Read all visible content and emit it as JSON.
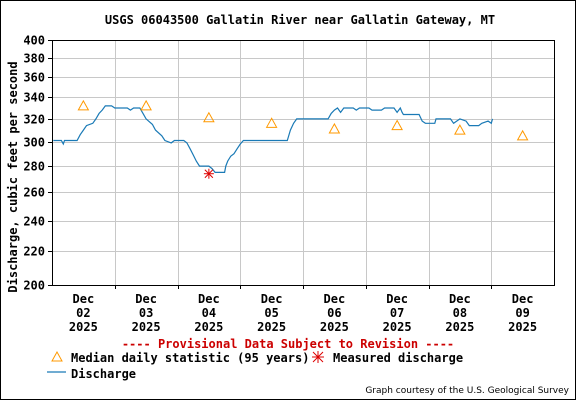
{
  "chart_data": {
    "type": "line",
    "title": "USGS 06043500 Gallatin River near Gallatin Gateway, MT",
    "ylabel": "Discharge, cubic feet per second",
    "ylim": [
      200,
      400
    ],
    "y_scale": "log",
    "y_ticks": [
      200,
      220,
      240,
      260,
      280,
      300,
      320,
      340,
      360,
      380,
      400
    ],
    "x_ticks": [
      {
        "label": [
          "Dec",
          "02",
          "2025"
        ],
        "day": 2
      },
      {
        "label": [
          "Dec",
          "03",
          "2025"
        ],
        "day": 3
      },
      {
        "label": [
          "Dec",
          "04",
          "2025"
        ],
        "day": 4
      },
      {
        "label": [
          "Dec",
          "05",
          "2025"
        ],
        "day": 5
      },
      {
        "label": [
          "Dec",
          "06",
          "2025"
        ],
        "day": 6
      },
      {
        "label": [
          "Dec",
          "07",
          "2025"
        ],
        "day": 7
      },
      {
        "label": [
          "Dec",
          "08",
          "2025"
        ],
        "day": 8
      },
      {
        "label": [
          "Dec",
          "09",
          "2025"
        ],
        "day": 9
      }
    ],
    "xlim_days": [
      1.5,
      9.5
    ],
    "grid": true,
    "series": [
      {
        "name": "Discharge",
        "color": "#1a7ab6",
        "points": [
          [
            1.52,
            301
          ],
          [
            1.65,
            301
          ],
          [
            1.68,
            298
          ],
          [
            1.7,
            301
          ],
          [
            1.9,
            301
          ],
          [
            1.95,
            306
          ],
          [
            2.0,
            310
          ],
          [
            2.05,
            314
          ],
          [
            2.15,
            316
          ],
          [
            2.2,
            320
          ],
          [
            2.25,
            325
          ],
          [
            2.3,
            328
          ],
          [
            2.35,
            332
          ],
          [
            2.45,
            332
          ],
          [
            2.5,
            330
          ],
          [
            2.6,
            330
          ],
          [
            2.7,
            330
          ],
          [
            2.75,
            328
          ],
          [
            2.8,
            330
          ],
          [
            2.9,
            330
          ],
          [
            2.95,
            325
          ],
          [
            3.0,
            320
          ],
          [
            3.1,
            315
          ],
          [
            3.15,
            310
          ],
          [
            3.25,
            305
          ],
          [
            3.3,
            301
          ],
          [
            3.4,
            299
          ],
          [
            3.45,
            301
          ],
          [
            3.55,
            301
          ],
          [
            3.6,
            301
          ],
          [
            3.65,
            299
          ],
          [
            3.7,
            294
          ],
          [
            3.75,
            289
          ],
          [
            3.8,
            284
          ],
          [
            3.85,
            280
          ],
          [
            3.9,
            280
          ],
          [
            4.0,
            280
          ],
          [
            4.05,
            278
          ],
          [
            4.1,
            275
          ],
          [
            4.2,
            275
          ],
          [
            4.25,
            275
          ],
          [
            4.27,
            280
          ],
          [
            4.3,
            284
          ],
          [
            4.35,
            288
          ],
          [
            4.4,
            290
          ],
          [
            4.45,
            294
          ],
          [
            4.5,
            298
          ],
          [
            4.55,
            301
          ],
          [
            5.0,
            301
          ],
          [
            5.25,
            301
          ],
          [
            5.3,
            310
          ],
          [
            5.35,
            316
          ],
          [
            5.4,
            320
          ],
          [
            5.5,
            320
          ],
          [
            5.9,
            320
          ],
          [
            5.95,
            325
          ],
          [
            6.0,
            328
          ],
          [
            6.05,
            330
          ],
          [
            6.1,
            326
          ],
          [
            6.15,
            330
          ],
          [
            6.3,
            330
          ],
          [
            6.35,
            328
          ],
          [
            6.4,
            330
          ],
          [
            6.55,
            330
          ],
          [
            6.6,
            328
          ],
          [
            6.75,
            328
          ],
          [
            6.8,
            330
          ],
          [
            6.95,
            330
          ],
          [
            7.0,
            326
          ],
          [
            7.05,
            330
          ],
          [
            7.08,
            326
          ],
          [
            7.1,
            324
          ],
          [
            7.25,
            324
          ],
          [
            7.35,
            324
          ],
          [
            7.4,
            318
          ],
          [
            7.45,
            316
          ],
          [
            7.55,
            316
          ],
          [
            7.6,
            316
          ],
          [
            7.62,
            320
          ],
          [
            7.8,
            320
          ],
          [
            7.85,
            320
          ],
          [
            7.9,
            316
          ],
          [
            8.0,
            320
          ],
          [
            8.1,
            318
          ],
          [
            8.15,
            314
          ],
          [
            8.3,
            314
          ],
          [
            8.35,
            316
          ],
          [
            8.45,
            318
          ],
          [
            8.5,
            316
          ],
          [
            8.52,
            320
          ]
        ]
      }
    ],
    "median_markers": [
      {
        "day": 2,
        "value": 332
      },
      {
        "day": 3,
        "value": 332
      },
      {
        "day": 4,
        "value": 321
      },
      {
        "day": 5,
        "value": 316
      },
      {
        "day": 6,
        "value": 311
      },
      {
        "day": 7,
        "value": 314
      },
      {
        "day": 8,
        "value": 310
      },
      {
        "day": 9,
        "value": 305
      }
    ],
    "measured": [
      {
        "day": 4.0,
        "value": 274
      }
    ],
    "colors": {
      "discharge": "#1a7ab6",
      "median": "#ff9900",
      "measured": "#dd0000",
      "provisional": "#cc0000",
      "grid": "#c8c8c8"
    }
  },
  "provisional_text": "---- Provisional Data Subject to Revision ----",
  "legend": {
    "median_label": "Median daily statistic (95 years)",
    "measured_label": "Measured discharge",
    "discharge_label": "Discharge"
  },
  "credit": "Graph courtesy of the U.S. Geological Survey"
}
